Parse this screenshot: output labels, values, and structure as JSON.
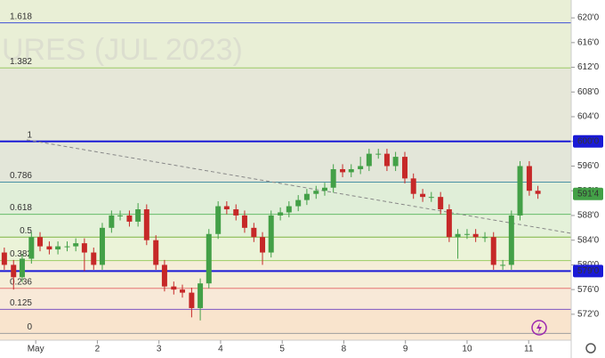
{
  "chart_data": {
    "type": "candlestick",
    "watermark": "URES (JUL 2023)",
    "up_color": "#43a047",
    "down_color": "#c62828",
    "xlim": [
      -0.58,
      8.69
    ],
    "xticks": [
      {
        "value": 0,
        "label": "May"
      },
      {
        "value": 1,
        "label": "2"
      },
      {
        "value": 2,
        "label": "3"
      },
      {
        "value": 3,
        "label": "4"
      },
      {
        "value": 4,
        "label": "5"
      },
      {
        "value": 5,
        "label": "8"
      },
      {
        "value": 6,
        "label": "9"
      },
      {
        "value": 7,
        "label": "10"
      },
      {
        "value": 8,
        "label": "11"
      }
    ],
    "ylim": [
      567.8,
      622.9
    ],
    "yticks": [
      {
        "value": 620,
        "label": "620'0"
      },
      {
        "value": 616,
        "label": "616'0"
      },
      {
        "value": 612,
        "label": "612'0"
      },
      {
        "value": 608,
        "label": "608'0"
      },
      {
        "value": 604,
        "label": "604'0"
      },
      {
        "value": 600,
        "label": "600'0"
      },
      {
        "value": 596,
        "label": "596'0"
      },
      {
        "value": 592,
        "label": "592'0"
      },
      {
        "value": 588,
        "label": "588'0"
      },
      {
        "value": 584,
        "label": "584'0"
      },
      {
        "value": 580,
        "label": "580'0"
      },
      {
        "value": 576,
        "label": "576'0"
      },
      {
        "value": 572,
        "label": "572'0"
      }
    ],
    "fib_levels": [
      {
        "label": "1.618",
        "price": 619.2,
        "color": "#3f51d6",
        "fill": "#e9efd6"
      },
      {
        "label": "1.382",
        "price": 611.9,
        "color": "#9ccc65",
        "fill": "#e6e7d8"
      },
      {
        "label": "1",
        "price": 600,
        "color": "#9e9e9e",
        "fill": "#e3e6d9"
      },
      {
        "label": "0.786",
        "price": 593.4,
        "color": "#4a90a4",
        "fill": "#e0eed8"
      },
      {
        "label": "0.618",
        "price": 588.2,
        "color": "#66bb6a",
        "fill": "#e4f1d9"
      },
      {
        "label": "0.5",
        "price": 584.5,
        "color": "#7cb342",
        "fill": "#ebf3d8"
      },
      {
        "label": "0.382",
        "price": 580.7,
        "color": "#9ccc65",
        "fill": "#f5eed8"
      },
      {
        "label": "0.236",
        "price": 576.2,
        "color": "#e57373",
        "fill": "#f8e9d8"
      },
      {
        "label": "0.125",
        "price": 572.8,
        "color": "#7e57c2",
        "fill": "#f9e4cd"
      },
      {
        "label": "0",
        "price": 568.9,
        "color": "#9e9e9e",
        "fill": "#fbe8d2"
      }
    ],
    "hlines": [
      {
        "price": 600,
        "label": "600'0",
        "color": "#1a1ad6"
      },
      {
        "price": 579,
        "label": "579'0",
        "color": "#1a1ad6"
      }
    ],
    "last_price": {
      "price": 591.5,
      "label": "591'4",
      "color": "#43a047"
    },
    "x": [
      -0.51,
      -0.36,
      -0.22,
      -0.07,
      0.07,
      0.22,
      0.36,
      0.51,
      0.65,
      0.79,
      0.94,
      1.08,
      1.23,
      1.37,
      1.52,
      1.66,
      1.8,
      1.95,
      2.09,
      2.24,
      2.38,
      2.53,
      2.67,
      2.81,
      2.96,
      3.1,
      3.25,
      3.39,
      3.54,
      3.68,
      3.82,
      3.97,
      4.11,
      4.26,
      4.4,
      4.55,
      4.69,
      4.83,
      4.98,
      5.12,
      5.27,
      5.41,
      5.56,
      5.7,
      5.84,
      5.99,
      6.13,
      6.28,
      6.42,
      6.57,
      6.71,
      6.85,
      7.0,
      7.14,
      7.29,
      7.43,
      7.58,
      7.72,
      7.86,
      8.01,
      8.15
    ],
    "open": [
      582,
      580,
      578,
      581,
      584.5,
      583,
      582.5,
      583,
      583,
      583.5,
      582,
      580,
      586,
      588,
      588,
      587,
      589,
      584,
      580,
      576.5,
      576,
      575.5,
      573,
      577,
      585,
      589.5,
      589,
      588,
      586,
      584.5,
      582,
      588,
      588.5,
      589.5,
      590.5,
      591.5,
      592,
      592.5,
      595.5,
      595,
      595.5,
      596,
      598,
      598,
      596,
      597.5,
      594,
      591.5,
      591,
      591,
      589,
      584.5,
      585,
      585,
      584.5,
      584.5,
      580,
      580,
      588,
      596,
      592
    ],
    "high": [
      582.8,
      580.8,
      581.8,
      585.3,
      585.3,
      583.8,
      583.8,
      583.8,
      584.3,
      584.3,
      582.8,
      586.8,
      588.8,
      588.8,
      588.8,
      590,
      589.8,
      584.8,
      580.8,
      577.3,
      576.8,
      576.3,
      577.8,
      585.8,
      590.3,
      590.3,
      589.8,
      588.8,
      586.8,
      585.3,
      588.8,
      589.3,
      590.3,
      591.3,
      592.3,
      592.8,
      593.3,
      596.3,
      596.3,
      596.3,
      597.5,
      598.8,
      598.8,
      598.8,
      598.3,
      598.3,
      594.8,
      592.3,
      591.8,
      591.8,
      589.8,
      585.8,
      585.8,
      585.8,
      585.3,
      585.3,
      580.8,
      588.8,
      596.8,
      596.8,
      592.8
    ],
    "low": [
      579.2,
      576,
      577.2,
      580.2,
      582.2,
      581.7,
      581.7,
      582.2,
      582.2,
      579,
      579.2,
      579.2,
      585.2,
      587.2,
      586.2,
      586.2,
      583.2,
      579.2,
      575.7,
      575.2,
      574.7,
      571.5,
      571,
      576.2,
      584.2,
      588.2,
      587.2,
      585.2,
      583.7,
      580,
      581.2,
      587.2,
      587.7,
      588.7,
      589.7,
      590.7,
      591.2,
      591.7,
      594.2,
      594.2,
      594.7,
      595.2,
      597.2,
      595.2,
      595.2,
      593.2,
      590.7,
      590.2,
      590.2,
      588.2,
      583.7,
      581,
      584.2,
      583.7,
      583.7,
      579.2,
      579.2,
      579.2,
      587.2,
      591.2,
      590.7
    ],
    "close": [
      580,
      578,
      581,
      584.5,
      583,
      582.5,
      583,
      583,
      583.5,
      582,
      580,
      586,
      588,
      588,
      587,
      589,
      584,
      580,
      576.5,
      576,
      575.5,
      573,
      577,
      585,
      589.5,
      589,
      588,
      586,
      584.5,
      582,
      588,
      588.5,
      589.5,
      590.5,
      591.5,
      592,
      592.5,
      595.5,
      595,
      595.5,
      596,
      598,
      598,
      596,
      597.5,
      594,
      591.5,
      591,
      591,
      589,
      584.5,
      585,
      585,
      584.5,
      584.5,
      580,
      580,
      588,
      596,
      592,
      591.5
    ]
  }
}
